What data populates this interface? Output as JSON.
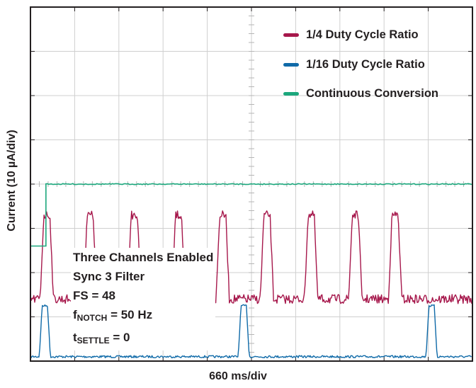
{
  "chart_data": {
    "type": "line",
    "title": "",
    "xlabel": "660 ms/div",
    "ylabel": "Current (10 µA/div)",
    "grid": true,
    "grid_divisions": {
      "x": 10,
      "y": 8
    },
    "legend_position": "top-right",
    "x_unit": "div",
    "y_unit": "div",
    "xlim": [
      0,
      10
    ],
    "ylim": [
      0,
      8
    ],
    "series": [
      {
        "name": "1/4 Duty Cycle Ratio",
        "color": "#a6174b",
        "baseline_div": 1.4,
        "high_div": 3.3,
        "pulse_start_div": [
          0.22,
          1.2,
          2.2,
          3.2,
          4.2,
          5.2,
          6.2,
          7.2,
          8.1
        ],
        "pulse_width_div": 0.3
      },
      {
        "name": "1/16 Duty Cycle Ratio",
        "color": "#0f6aa8",
        "baseline_div": 0.1,
        "high_div": 1.25,
        "pulse_start_div": [
          0.2,
          4.7,
          8.95
        ],
        "pulse_width_div": 0.25
      },
      {
        "name": "Continuous Conversion",
        "color": "#1ba77c",
        "step_x_div": 0.35,
        "low_div": 2.6,
        "high_div": 4.0
      }
    ],
    "annotation": {
      "line1": "Three Channels Enabled",
      "line2": "Sync 3 Filter",
      "line3": "FS = 48",
      "fnotch_main": "f",
      "fnotch_sub": "NOTCH",
      "fnotch_value": " = 50 Hz",
      "tsettle_main": "t",
      "tsettle_sub": "SETTLE",
      "tsettle_value": " = 0"
    }
  }
}
